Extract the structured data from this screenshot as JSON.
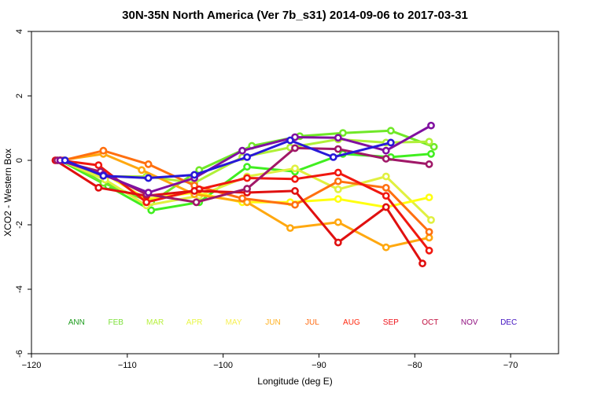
{
  "chart_data": {
    "type": "line",
    "title": "30N-35N North America (Ver 7b_s31)   2014-09-06 to 2017-03-31",
    "xlabel": "Longitude (deg E)",
    "ylabel": "XCO2 - Western Box",
    "xlim": [
      -120,
      -65
    ],
    "ylim": [
      -6,
      4
    ],
    "x_ticks": [
      -120,
      -110,
      -100,
      -90,
      -80,
      -70
    ],
    "x_tick_labels": [
      "−120",
      "−110",
      "−100",
      "−90",
      "−80",
      "−70"
    ],
    "y_ticks": [
      -6,
      -4,
      -2,
      0,
      2,
      4
    ],
    "y_tick_labels": [
      "-6",
      "-4",
      "-2",
      "0",
      "2",
      "4"
    ],
    "grid": false,
    "legend": {
      "placement": "bottom-inside",
      "y_value": -5.0,
      "entries": [
        {
          "label": "ANN",
          "color": "#1e9c1e",
          "x_value": -115.3
        },
        {
          "label": "FEB",
          "color": "#7de03a",
          "x_value": -111.2
        },
        {
          "label": "MAR",
          "color": "#b8f040",
          "x_value": -107.1
        },
        {
          "label": "APR",
          "color": "#e8f648",
          "x_value": -103.0
        },
        {
          "label": "MAY",
          "color": "#f7f055",
          "x_value": -98.9
        },
        {
          "label": "JUN",
          "color": "#ffb020",
          "x_value": -94.8
        },
        {
          "label": "JUL",
          "color": "#ff6a10",
          "x_value": -90.7
        },
        {
          "label": "AUG",
          "color": "#ff2a10",
          "x_value": -86.6
        },
        {
          "label": "SEP",
          "color": "#ee1018",
          "x_value": -82.5
        },
        {
          "label": "OCT",
          "color": "#c01040",
          "x_value": -78.4
        },
        {
          "label": "NOV",
          "color": "#901080",
          "x_value": -74.3
        },
        {
          "label": "DEC",
          "color": "#4010c0",
          "x_value": -70.2
        }
      ]
    },
    "series": [
      {
        "color": "#40ee20",
        "x": [
          -117,
          -112,
          -107.5,
          -102.5,
          -97.5,
          -92.5,
          -87.5,
          -82.5,
          -78.3
        ],
        "y": [
          0,
          -0.8,
          -1.55,
          -1.3,
          -0.2,
          -0.35,
          0.2,
          0.1,
          0.2
        ]
      },
      {
        "color": "#70e828",
        "x": [
          -116.5,
          -112.5,
          -107.5,
          -102.5,
          -97,
          -92,
          -87.5,
          -82.5,
          -78
        ],
        "y": [
          0,
          -0.7,
          -1.3,
          -0.3,
          0.45,
          0.75,
          0.85,
          0.92,
          0.42
        ]
      },
      {
        "color": "#b0f038",
        "x": [
          -117,
          -112.5,
          -108,
          -103,
          -98,
          -93,
          -88,
          -83,
          -78.5
        ],
        "y": [
          0,
          -0.5,
          -0.5,
          -0.7,
          0.1,
          0.4,
          0.65,
          0.55,
          0.58
        ]
      },
      {
        "color": "#e0f040",
        "x": [
          -117,
          -112.3,
          -108,
          -102.5,
          -97.5,
          -92.5,
          -88,
          -83,
          -78.3
        ],
        "y": [
          0,
          -0.6,
          -1.4,
          -1.1,
          -0.5,
          -0.25,
          -0.9,
          -0.5,
          -1.85
        ]
      },
      {
        "color": "#ffff10",
        "x": [
          -117.2,
          -112.5,
          -108,
          -103,
          -98,
          -93,
          -88,
          -83,
          -78.5
        ],
        "y": [
          0,
          -0.4,
          -1.2,
          -1.0,
          -1.3,
          -1.3,
          -1.2,
          -1.45,
          -1.15
        ]
      },
      {
        "color": "#ffa810",
        "x": [
          -117,
          -112.5,
          -108.5,
          -103,
          -97.5,
          -93,
          -88,
          -83,
          -78.5
        ],
        "y": [
          0,
          0.2,
          -0.3,
          -1.05,
          -1.3,
          -2.1,
          -1.92,
          -2.7,
          -2.4
        ]
      },
      {
        "color": "#ff7010",
        "x": [
          -116.7,
          -112.5,
          -107.8,
          -103,
          -98,
          -92.5,
          -88,
          -83,
          -78.5
        ],
        "y": [
          0,
          0.3,
          -0.12,
          -0.78,
          -1.18,
          -1.38,
          -0.65,
          -0.85,
          -2.22
        ]
      },
      {
        "color": "#f01810",
        "x": [
          -117,
          -113,
          -108,
          -102.5,
          -97.5,
          -92.5,
          -88,
          -83,
          -78.5
        ],
        "y": [
          0,
          -0.15,
          -1.3,
          -0.9,
          -0.55,
          -0.58,
          -0.38,
          -1.1,
          -2.8
        ]
      },
      {
        "color": "#e01010",
        "x": [
          -117.5,
          -113,
          -108,
          -103,
          -97.5,
          -92.5,
          -88,
          -83,
          -79.2
        ],
        "y": [
          0,
          -0.85,
          -1.1,
          -0.95,
          -1.0,
          -0.95,
          -2.55,
          -1.45,
          -3.2
        ]
      },
      {
        "color": "#a01868",
        "x": [
          -117.3,
          -112.8,
          -108,
          -102.8,
          -97.5,
          -92.5,
          -88,
          -83,
          -78.5
        ],
        "y": [
          0,
          -0.35,
          -1.05,
          -1.3,
          -0.88,
          0.38,
          0.35,
          0.05,
          -0.12
        ]
      },
      {
        "color": "#8010a0",
        "x": [
          -117,
          -112.5,
          -107.8,
          -103,
          -98,
          -92.5,
          -88,
          -83,
          -78.3
        ],
        "y": [
          0,
          -0.45,
          -1.0,
          -0.55,
          0.3,
          0.72,
          0.7,
          0.3,
          1.08
        ]
      },
      {
        "color": "#2818d8",
        "x": [
          -116.5,
          -112.5,
          -107.8,
          -103,
          -97.5,
          -93,
          -88.5,
          -82.5
        ],
        "y": [
          0,
          -0.48,
          -0.55,
          -0.45,
          0.1,
          0.62,
          0.1,
          0.55
        ]
      }
    ]
  }
}
